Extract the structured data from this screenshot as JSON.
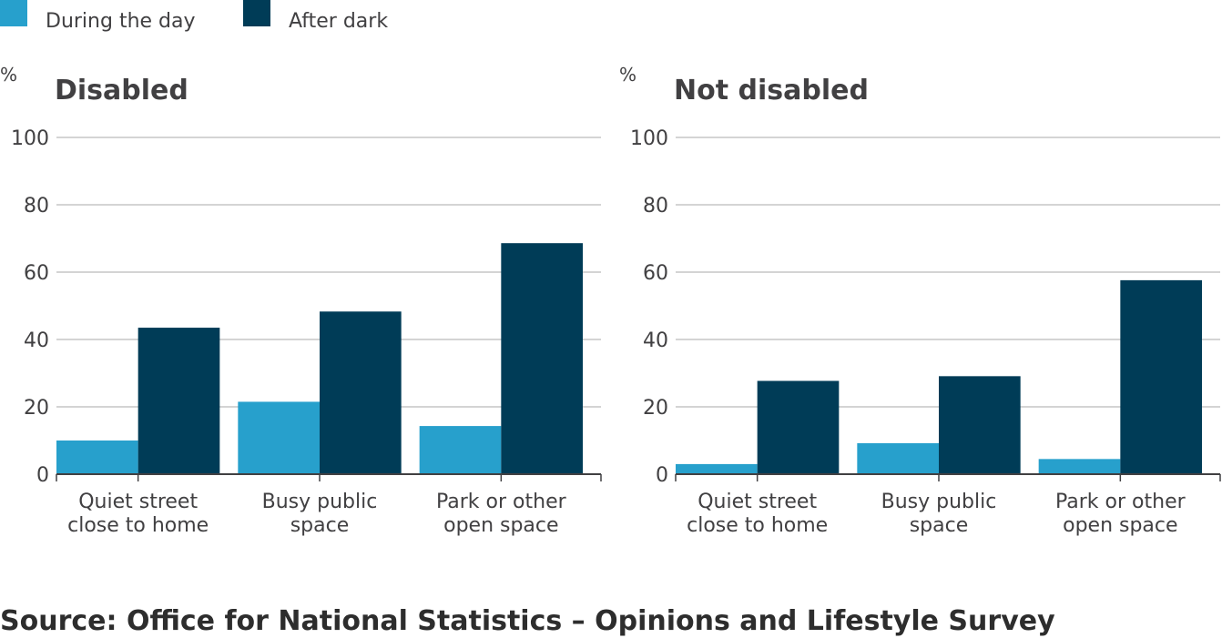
{
  "legend": {
    "day_label": "During the day",
    "dark_label": "After dark"
  },
  "colors": {
    "day": "#27a0cc",
    "dark": "#003c57",
    "grid": "#c6c6c6",
    "axis": "#414042"
  },
  "source": "Source: Office for National Statistics – Opinions and Lifestyle Survey",
  "chart_data": [
    {
      "type": "bar",
      "title": "Disabled",
      "unit": "%",
      "categories": [
        [
          "Quiet street",
          "close to home"
        ],
        [
          "Busy public",
          "space"
        ],
        [
          "Park or other",
          "open space"
        ]
      ],
      "series": [
        {
          "name": "During the day",
          "values": [
            10,
            21.5,
            14.3
          ]
        },
        {
          "name": "After dark",
          "values": [
            43.5,
            48.3,
            68.6
          ]
        }
      ],
      "ylim": [
        0,
        100
      ],
      "yticks": [
        0,
        20,
        40,
        60,
        80,
        100
      ],
      "grid": true,
      "legend": "top-left"
    },
    {
      "type": "bar",
      "title": "Not disabled",
      "unit": "%",
      "categories": [
        [
          "Quiet street",
          "close to home"
        ],
        [
          "Busy public",
          "space"
        ],
        [
          "Park or other",
          "open space"
        ]
      ],
      "series": [
        {
          "name": "During the day",
          "values": [
            3,
            9.2,
            4.5
          ]
        },
        {
          "name": "After dark",
          "values": [
            27.7,
            29.1,
            57.6
          ]
        }
      ],
      "ylim": [
        0,
        100
      ],
      "yticks": [
        0,
        20,
        40,
        60,
        80,
        100
      ],
      "grid": true,
      "legend": "top-left"
    }
  ]
}
